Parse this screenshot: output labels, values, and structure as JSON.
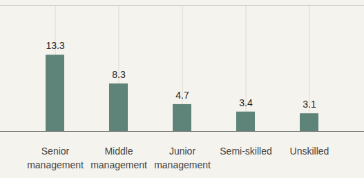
{
  "chart_data": {
    "type": "bar",
    "categories": [
      "Senior management",
      "Middle management",
      "Junior management",
      "Semi-skilled",
      "Unskilled"
    ],
    "values": [
      13.3,
      8.3,
      4.7,
      3.4,
      3.1
    ],
    "color": "#5e8479",
    "ylim": [
      0,
      22
    ],
    "grid": true,
    "data_labels": true,
    "tick_labels": "x"
  }
}
